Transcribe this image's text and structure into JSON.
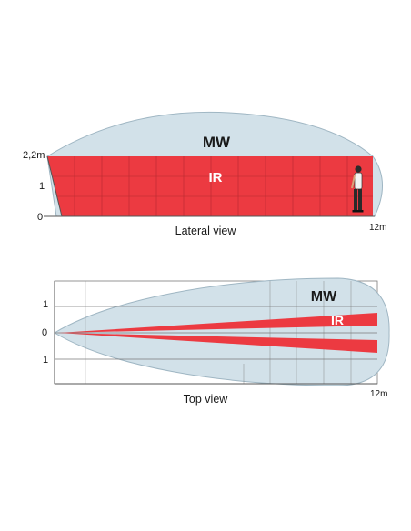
{
  "lateral": {
    "mw_label": "MW",
    "ir_label": "IR",
    "y_top_label": "2,2m",
    "y_mid_label": "1",
    "y_zero_label": "0",
    "x_end_label": "12m",
    "caption": "Lateral view"
  },
  "top": {
    "mw_label": "MW",
    "ir_label": "IR",
    "y_up_label": "1",
    "y_zero_label": "0",
    "y_down_label": "1",
    "x_end_label": "12m",
    "caption": "Top view"
  },
  "colors": {
    "mw_fill": "#d2e1e9",
    "mw_stroke": "#9fb6c3",
    "ir_fill": "#ec3a41",
    "grid": "#7a7a7a"
  }
}
